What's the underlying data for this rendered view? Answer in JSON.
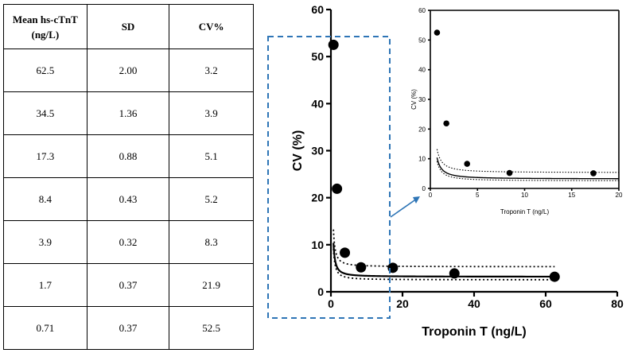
{
  "table": {
    "headers": [
      "Mean hs-cTnT\n(ng/L)",
      "SD",
      "CV%"
    ],
    "header_lines": [
      [
        "Mean hs-cTnT",
        "(ng/L)"
      ],
      [
        "SD"
      ],
      [
        "CV%"
      ]
    ],
    "rows": [
      [
        "62.5",
        "2.00",
        "3.2"
      ],
      [
        "34.5",
        "1.36",
        "3.9"
      ],
      [
        "17.3",
        "0.88",
        "5.1"
      ],
      [
        "8.4",
        "0.43",
        "5.2"
      ],
      [
        "3.9",
        "0.32",
        "8.3"
      ],
      [
        "1.7",
        "0.37",
        "21.9"
      ],
      [
        "0.71",
        "0.37",
        "52.5"
      ]
    ]
  },
  "chart_data": [
    {
      "type": "scatter",
      "title": "",
      "xlabel": "Troponin T (ng/L)",
      "ylabel": "CV (%)",
      "xlim": [
        0,
        80
      ],
      "ylim": [
        0,
        60
      ],
      "xticks": [
        0,
        20,
        40,
        60,
        80
      ],
      "yticks": [
        0,
        10,
        20,
        30,
        40,
        50,
        60
      ],
      "points": {
        "x": [
          62.5,
          34.5,
          17.3,
          8.4,
          3.9,
          1.7,
          0.71
        ],
        "y": [
          3.2,
          3.9,
          5.1,
          5.2,
          8.3,
          21.9,
          52.5
        ]
      },
      "fit": {
        "style": "solid",
        "x_range": [
          0.71,
          62.5
        ]
      },
      "confidence_band": {
        "style": "dotted",
        "upper_plateau": 5.2,
        "lower_plateau": 2.8
      },
      "grid": false,
      "highlight_region": {
        "style": "dashed",
        "color": "#2e75b6",
        "x_range": [
          0,
          17.3
        ]
      }
    },
    {
      "type": "scatter",
      "title": "",
      "xlabel": "Troponin T (ng/L)",
      "ylabel": "CV (%)",
      "xlim": [
        0,
        20
      ],
      "ylim": [
        0,
        60
      ],
      "xticks": [
        0,
        5,
        10,
        15,
        20
      ],
      "yticks": [
        0,
        10,
        20,
        30,
        40,
        50,
        60
      ],
      "points": {
        "x": [
          17.3,
          8.4,
          3.9,
          1.7,
          0.71
        ],
        "y": [
          5.1,
          5.2,
          8.3,
          21.9,
          52.5
        ]
      },
      "fit": {
        "style": "solid",
        "x_range": [
          0.71,
          20
        ]
      },
      "confidence_band": {
        "style": "dotted",
        "upper_plateau": 5.2,
        "lower_plateau": 2.8
      },
      "grid": false
    }
  ],
  "colors": {
    "axis": "#000000",
    "points": "#000000",
    "dashed_box": "#2e75b6",
    "arrow": "#2e75b6"
  }
}
